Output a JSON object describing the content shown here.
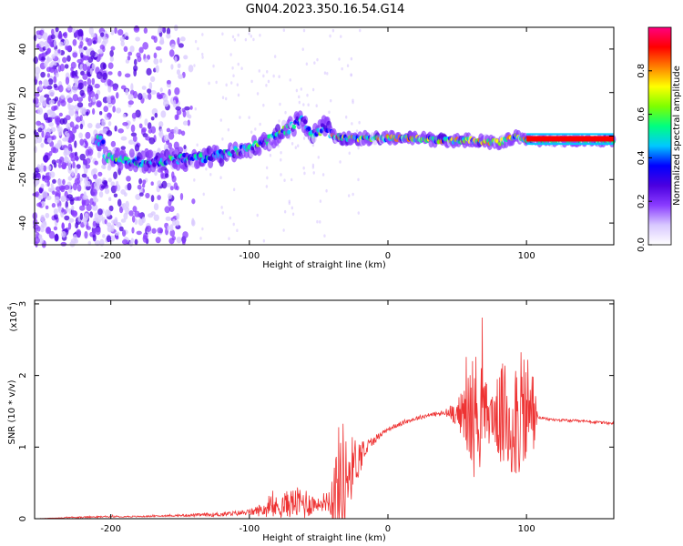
{
  "title": "GN04.2023.350.16.54.G14",
  "chart_data": [
    {
      "type": "heatmap",
      "xlabel": "Height of straight line (km)",
      "ylabel": "Frequency (Hz)",
      "xlim": [
        -255,
        163
      ],
      "ylim": [
        -50,
        50
      ],
      "xticks": [
        -200,
        -100,
        0,
        100
      ],
      "yticks": [
        -40,
        -20,
        0,
        20,
        40
      ],
      "colorbar": {
        "label": "Normalized spectral amplitude",
        "range": [
          0,
          1
        ],
        "ticks": [
          "0.0",
          "0.2",
          "0.4",
          "0.6",
          "0.8"
        ],
        "colormap": [
          "#ffffff",
          "#d8c8ff",
          "#8a3cff",
          "#4b00e0",
          "#0000ff",
          "#00c8ff",
          "#00ff80",
          "#7dff00",
          "#ffff00",
          "#ff8000",
          "#ff0000",
          "#ff0080"
        ]
      },
      "ridge": [
        {
          "x": -205,
          "f": -10
        },
        {
          "x": -190,
          "f": -11
        },
        {
          "x": -175,
          "f": -12
        },
        {
          "x": -160,
          "f": -11
        },
        {
          "x": -145,
          "f": -10
        },
        {
          "x": -130,
          "f": -10
        },
        {
          "x": -115,
          "f": -8
        },
        {
          "x": -100,
          "f": -6
        },
        {
          "x": -90,
          "f": -3
        },
        {
          "x": -80,
          "f": 0
        },
        {
          "x": -70,
          "f": 4
        },
        {
          "x": -62,
          "f": 8
        },
        {
          "x": -55,
          "f": 0
        },
        {
          "x": -50,
          "f": 2
        },
        {
          "x": -45,
          "f": 5
        },
        {
          "x": -40,
          "f": 0
        },
        {
          "x": -30,
          "f": -1
        },
        {
          "x": -20,
          "f": -1
        },
        {
          "x": 0,
          "f": -1
        },
        {
          "x": 20,
          "f": -1
        },
        {
          "x": 40,
          "f": -2
        },
        {
          "x": 60,
          "f": -2
        },
        {
          "x": 80,
          "f": -3
        },
        {
          "x": 93,
          "f": 0
        },
        {
          "x": 100,
          "f": -2
        },
        {
          "x": 163,
          "f": -2
        }
      ]
    },
    {
      "type": "line",
      "xlabel": "Height of straight line (km)",
      "ylabel": "SNR (10 * v/v)",
      "yscale_label": "(x10",
      "yscale_exp": "4",
      "xlim": [
        -255,
        163
      ],
      "ylim": [
        0,
        3.05
      ],
      "xticks": [
        -200,
        -100,
        0,
        100
      ],
      "yticks": [
        0,
        1,
        2,
        3
      ],
      "color": "#ee3333",
      "envelope": {
        "x": [
          -255,
          -220,
          -200,
          -180,
          -160,
          -140,
          -120,
          -100,
          -80,
          -70,
          -60,
          -50,
          -42,
          -38,
          -34,
          -30,
          -25,
          -20,
          -15,
          -10,
          -5,
          0,
          10,
          20,
          30,
          40,
          50,
          55,
          60,
          65,
          70,
          75,
          80,
          85,
          90,
          95,
          100,
          104,
          108,
          112,
          120,
          140,
          163
        ],
        "base": [
          0.0,
          0.02,
          0.03,
          0.03,
          0.04,
          0.05,
          0.06,
          0.09,
          0.16,
          0.22,
          0.22,
          0.2,
          0.28,
          0.36,
          0.45,
          0.58,
          0.76,
          0.88,
          1.0,
          1.1,
          1.18,
          1.25,
          1.33,
          1.4,
          1.45,
          1.47,
          1.48,
          1.46,
          1.44,
          1.46,
          1.46,
          1.44,
          1.42,
          1.4,
          1.42,
          1.45,
          1.47,
          1.5,
          1.42,
          1.4,
          1.38,
          1.36,
          1.33
        ],
        "noise": [
          0.0,
          0.01,
          0.01,
          0.01,
          0.01,
          0.02,
          0.03,
          0.04,
          0.16,
          0.2,
          0.24,
          0.08,
          0.2,
          0.6,
          1.1,
          0.6,
          0.4,
          0.25,
          0.12,
          0.06,
          0.04,
          0.03,
          0.03,
          0.03,
          0.03,
          0.04,
          0.18,
          0.4,
          0.85,
          0.9,
          0.5,
          0.35,
          0.6,
          0.9,
          1.1,
          0.85,
          0.95,
          0.8,
          0.02,
          0.02,
          0.02,
          0.02,
          0.02
        ]
      }
    }
  ]
}
